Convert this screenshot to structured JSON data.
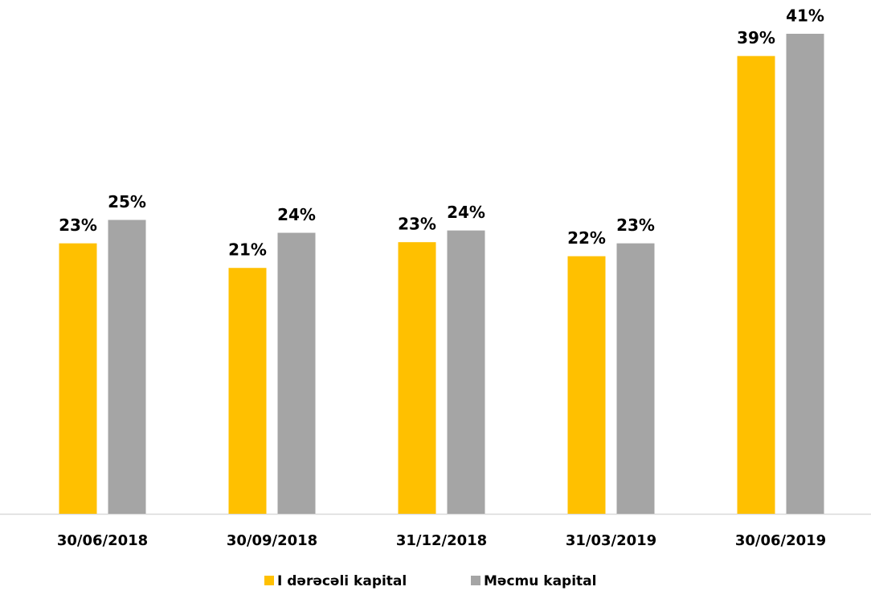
{
  "chart_data": {
    "type": "bar",
    "categories": [
      "30/06/2018",
      "30/09/2018",
      "31/12/2018",
      "31/03/2019",
      "30/06/2019"
    ],
    "series": [
      {
        "name": "I dərəcəli kapital",
        "color": "#ffc000",
        "values": [
          23.1,
          21.0,
          23.2,
          22.0,
          39.1
        ],
        "value_labels": [
          "23%",
          "21%",
          "23%",
          "22%",
          "39%"
        ]
      },
      {
        "name": "Məcmu kapital",
        "color": "#a5a5a5",
        "values": [
          25.1,
          24.0,
          24.2,
          23.1,
          41.0
        ],
        "value_labels": [
          "25%",
          "24%",
          "24%",
          "23%",
          "41%"
        ]
      }
    ],
    "ylim": [
      0,
      41
    ],
    "legend": "bottom"
  }
}
